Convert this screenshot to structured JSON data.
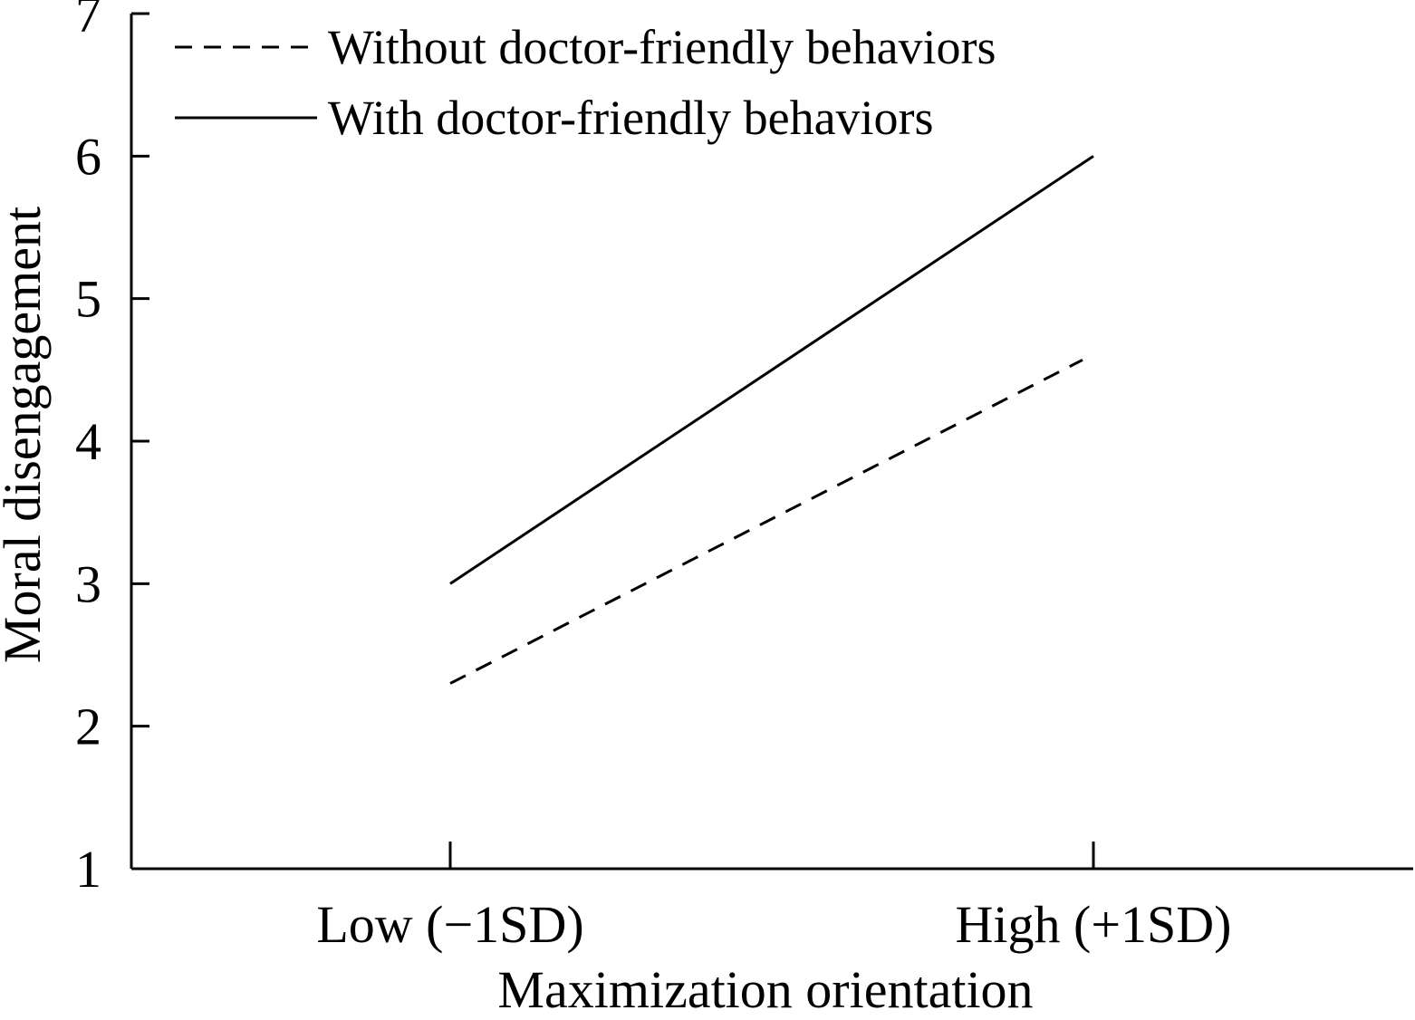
{
  "chart_data": {
    "type": "line",
    "title": "",
    "xlabel": "Maximization orientation",
    "ylabel": "Moral disengagement",
    "categories": [
      "Low (−1SD)",
      "High (+1SD)"
    ],
    "ylim": [
      1,
      7
    ],
    "yticks": [
      1,
      2,
      3,
      4,
      5,
      6,
      7
    ],
    "grid": false,
    "legend_position": "top-left",
    "series": [
      {
        "name": "Without doctor-friendly behaviors",
        "style": "dashed",
        "color": "#000000",
        "values": [
          2.3,
          4.57
        ]
      },
      {
        "name": "With doctor-friendly behaviors",
        "style": "solid",
        "color": "#000000",
        "values": [
          3.0,
          6.0
        ]
      }
    ]
  }
}
